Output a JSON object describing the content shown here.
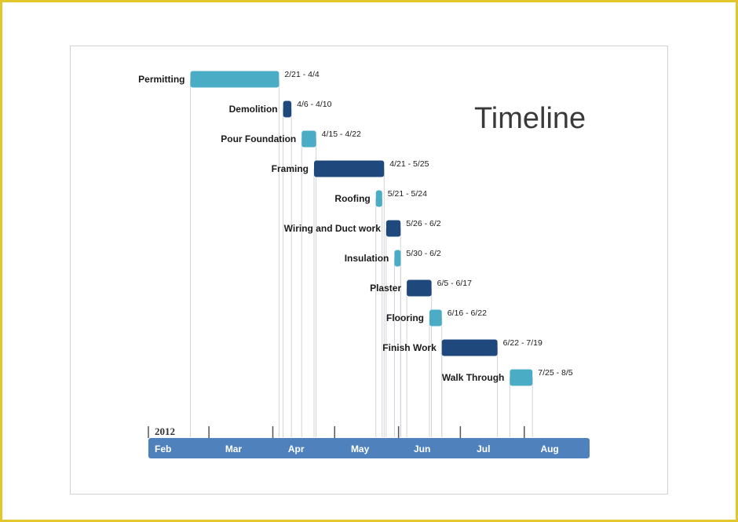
{
  "chart_data": {
    "type": "gantt",
    "title": "Timeline",
    "year": "2012",
    "months": [
      "Feb",
      "Mar",
      "Apr",
      "May",
      "Jun",
      "Jul",
      "Aug"
    ],
    "tasks": [
      {
        "name": "Permitting",
        "start": "2012-02-21",
        "end": "2012-04-04",
        "label": "2/21 - 4/4",
        "color": "#4bacc6"
      },
      {
        "name": "Demolition",
        "start": "2012-04-06",
        "end": "2012-04-10",
        "label": "4/6 - 4/10",
        "color": "#1f497d"
      },
      {
        "name": "Pour Foundation",
        "start": "2012-04-15",
        "end": "2012-04-22",
        "label": "4/15 - 4/22",
        "color": "#4bacc6"
      },
      {
        "name": "Framing",
        "start": "2012-04-21",
        "end": "2012-05-25",
        "label": "4/21 - 5/25",
        "color": "#1f497d"
      },
      {
        "name": "Roofing",
        "start": "2012-05-21",
        "end": "2012-05-24",
        "label": "5/21 - 5/24",
        "color": "#4bacc6"
      },
      {
        "name": "Wiring and Duct work",
        "start": "2012-05-26",
        "end": "2012-06-02",
        "label": "5/26 - 6/2",
        "color": "#1f497d"
      },
      {
        "name": "Insulation",
        "start": "2012-05-30",
        "end": "2012-06-02",
        "label": "5/30 - 6/2",
        "color": "#4bacc6"
      },
      {
        "name": "Plaster",
        "start": "2012-06-05",
        "end": "2012-06-17",
        "label": "6/5 - 6/17",
        "color": "#1f497d"
      },
      {
        "name": "Flooring",
        "start": "2012-06-16",
        "end": "2012-06-22",
        "label": "6/16 - 6/22",
        "color": "#4bacc6"
      },
      {
        "name": "Finish Work",
        "start": "2012-06-22",
        "end": "2012-07-19",
        "label": "6/22 - 7/19",
        "color": "#1f497d"
      },
      {
        "name": "Walk Through",
        "start": "2012-07-25",
        "end": "2012-08-05",
        "label": "7/25 - 8/5",
        "color": "#4bacc6"
      }
    ],
    "axis_color": "#4f81bd",
    "grid": false
  }
}
